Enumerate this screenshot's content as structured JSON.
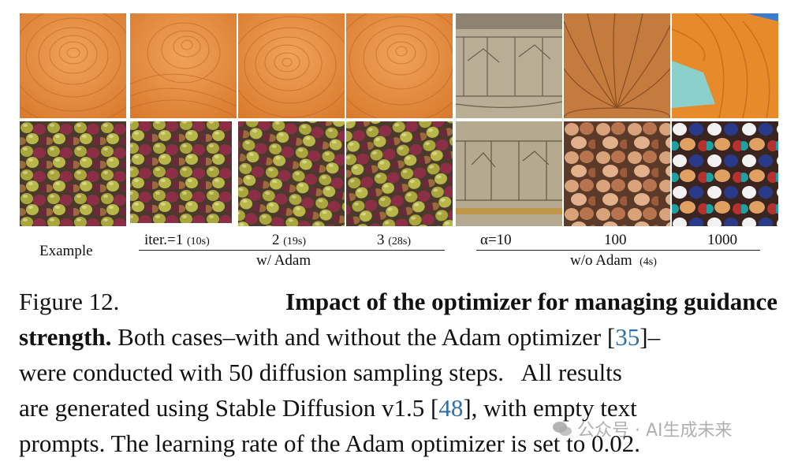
{
  "figure": {
    "example_label": "Example",
    "with_adam": {
      "group_label": "w/ Adam",
      "columns": [
        {
          "value": "iter.=1",
          "time": "(10s)"
        },
        {
          "value": "2",
          "time": "(19s)"
        },
        {
          "value": "3",
          "time": "(28s)"
        }
      ]
    },
    "without_adam": {
      "group_label": "w/o Adam",
      "group_time": "(4s)",
      "columns": [
        {
          "value": "α=10"
        },
        {
          "value": "100"
        },
        {
          "value": "1000"
        }
      ]
    },
    "rows": [
      "wood texture",
      "olives"
    ]
  },
  "caption": {
    "figure_number": "Figure 12.",
    "title_part1": "Impact of the optimizer for managing guidance",
    "title_part2": "strength.",
    "line2_text": "Both cases–with and without the Adam optimizer [",
    "ref1": "35",
    "line2_end": "]–",
    "line3": "were conducted with 50 diffusion sampling steps.   All results",
    "line4_text": "are generated using Stable Diffusion v1.5 [",
    "ref2": "48",
    "line4_end": "], with empty text",
    "line5": "prompts. The learning rate of the Adam optimizer is set to 0.02."
  },
  "watermark": {
    "text": "公众号 · AI生成未来"
  },
  "colors": {
    "wood": "#e58a3c",
    "link": "#2f6fa8"
  }
}
